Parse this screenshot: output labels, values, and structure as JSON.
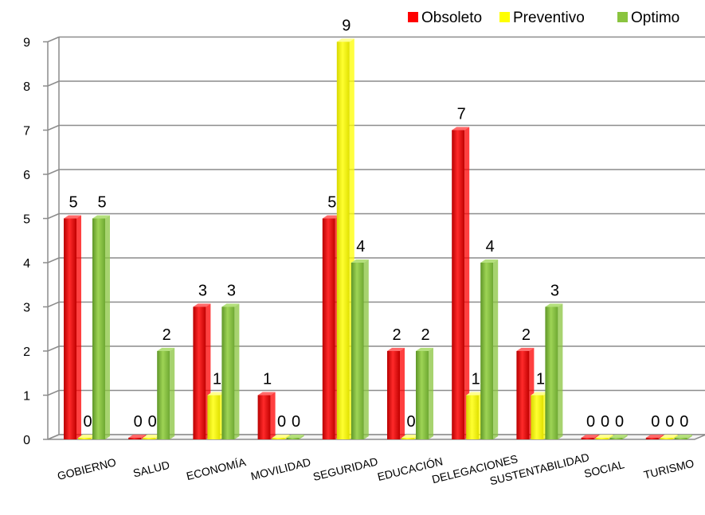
{
  "chart_data": {
    "type": "bar",
    "categories": [
      "GOBIERNO",
      "SALUD",
      "ECONOMÍA",
      "MOVILIDAD",
      "SEGURIDAD",
      "EDUCACIÓN",
      "DELEGACIONES",
      "SUSTENTABILIDAD",
      "SOCIAL",
      "TURISMO"
    ],
    "series": [
      {
        "name": "Obsoleto",
        "color": "#ff0000",
        "values": [
          5,
          0,
          3,
          1,
          5,
          2,
          7,
          2,
          0,
          0
        ]
      },
      {
        "name": "Preventivo",
        "color": "#ffff00",
        "values": [
          0,
          0,
          1,
          0,
          9,
          0,
          1,
          1,
          0,
          0
        ]
      },
      {
        "name": "Optimo",
        "color": "#8ac43f",
        "values": [
          5,
          2,
          3,
          0,
          4,
          2,
          4,
          3,
          0,
          0
        ]
      }
    ],
    "ylim": [
      0,
      9
    ],
    "yticks": [
      0,
      1,
      2,
      3,
      4,
      5,
      6,
      7,
      8,
      9
    ],
    "legend_position": "top-right",
    "grid": true,
    "data_labels": true
  }
}
